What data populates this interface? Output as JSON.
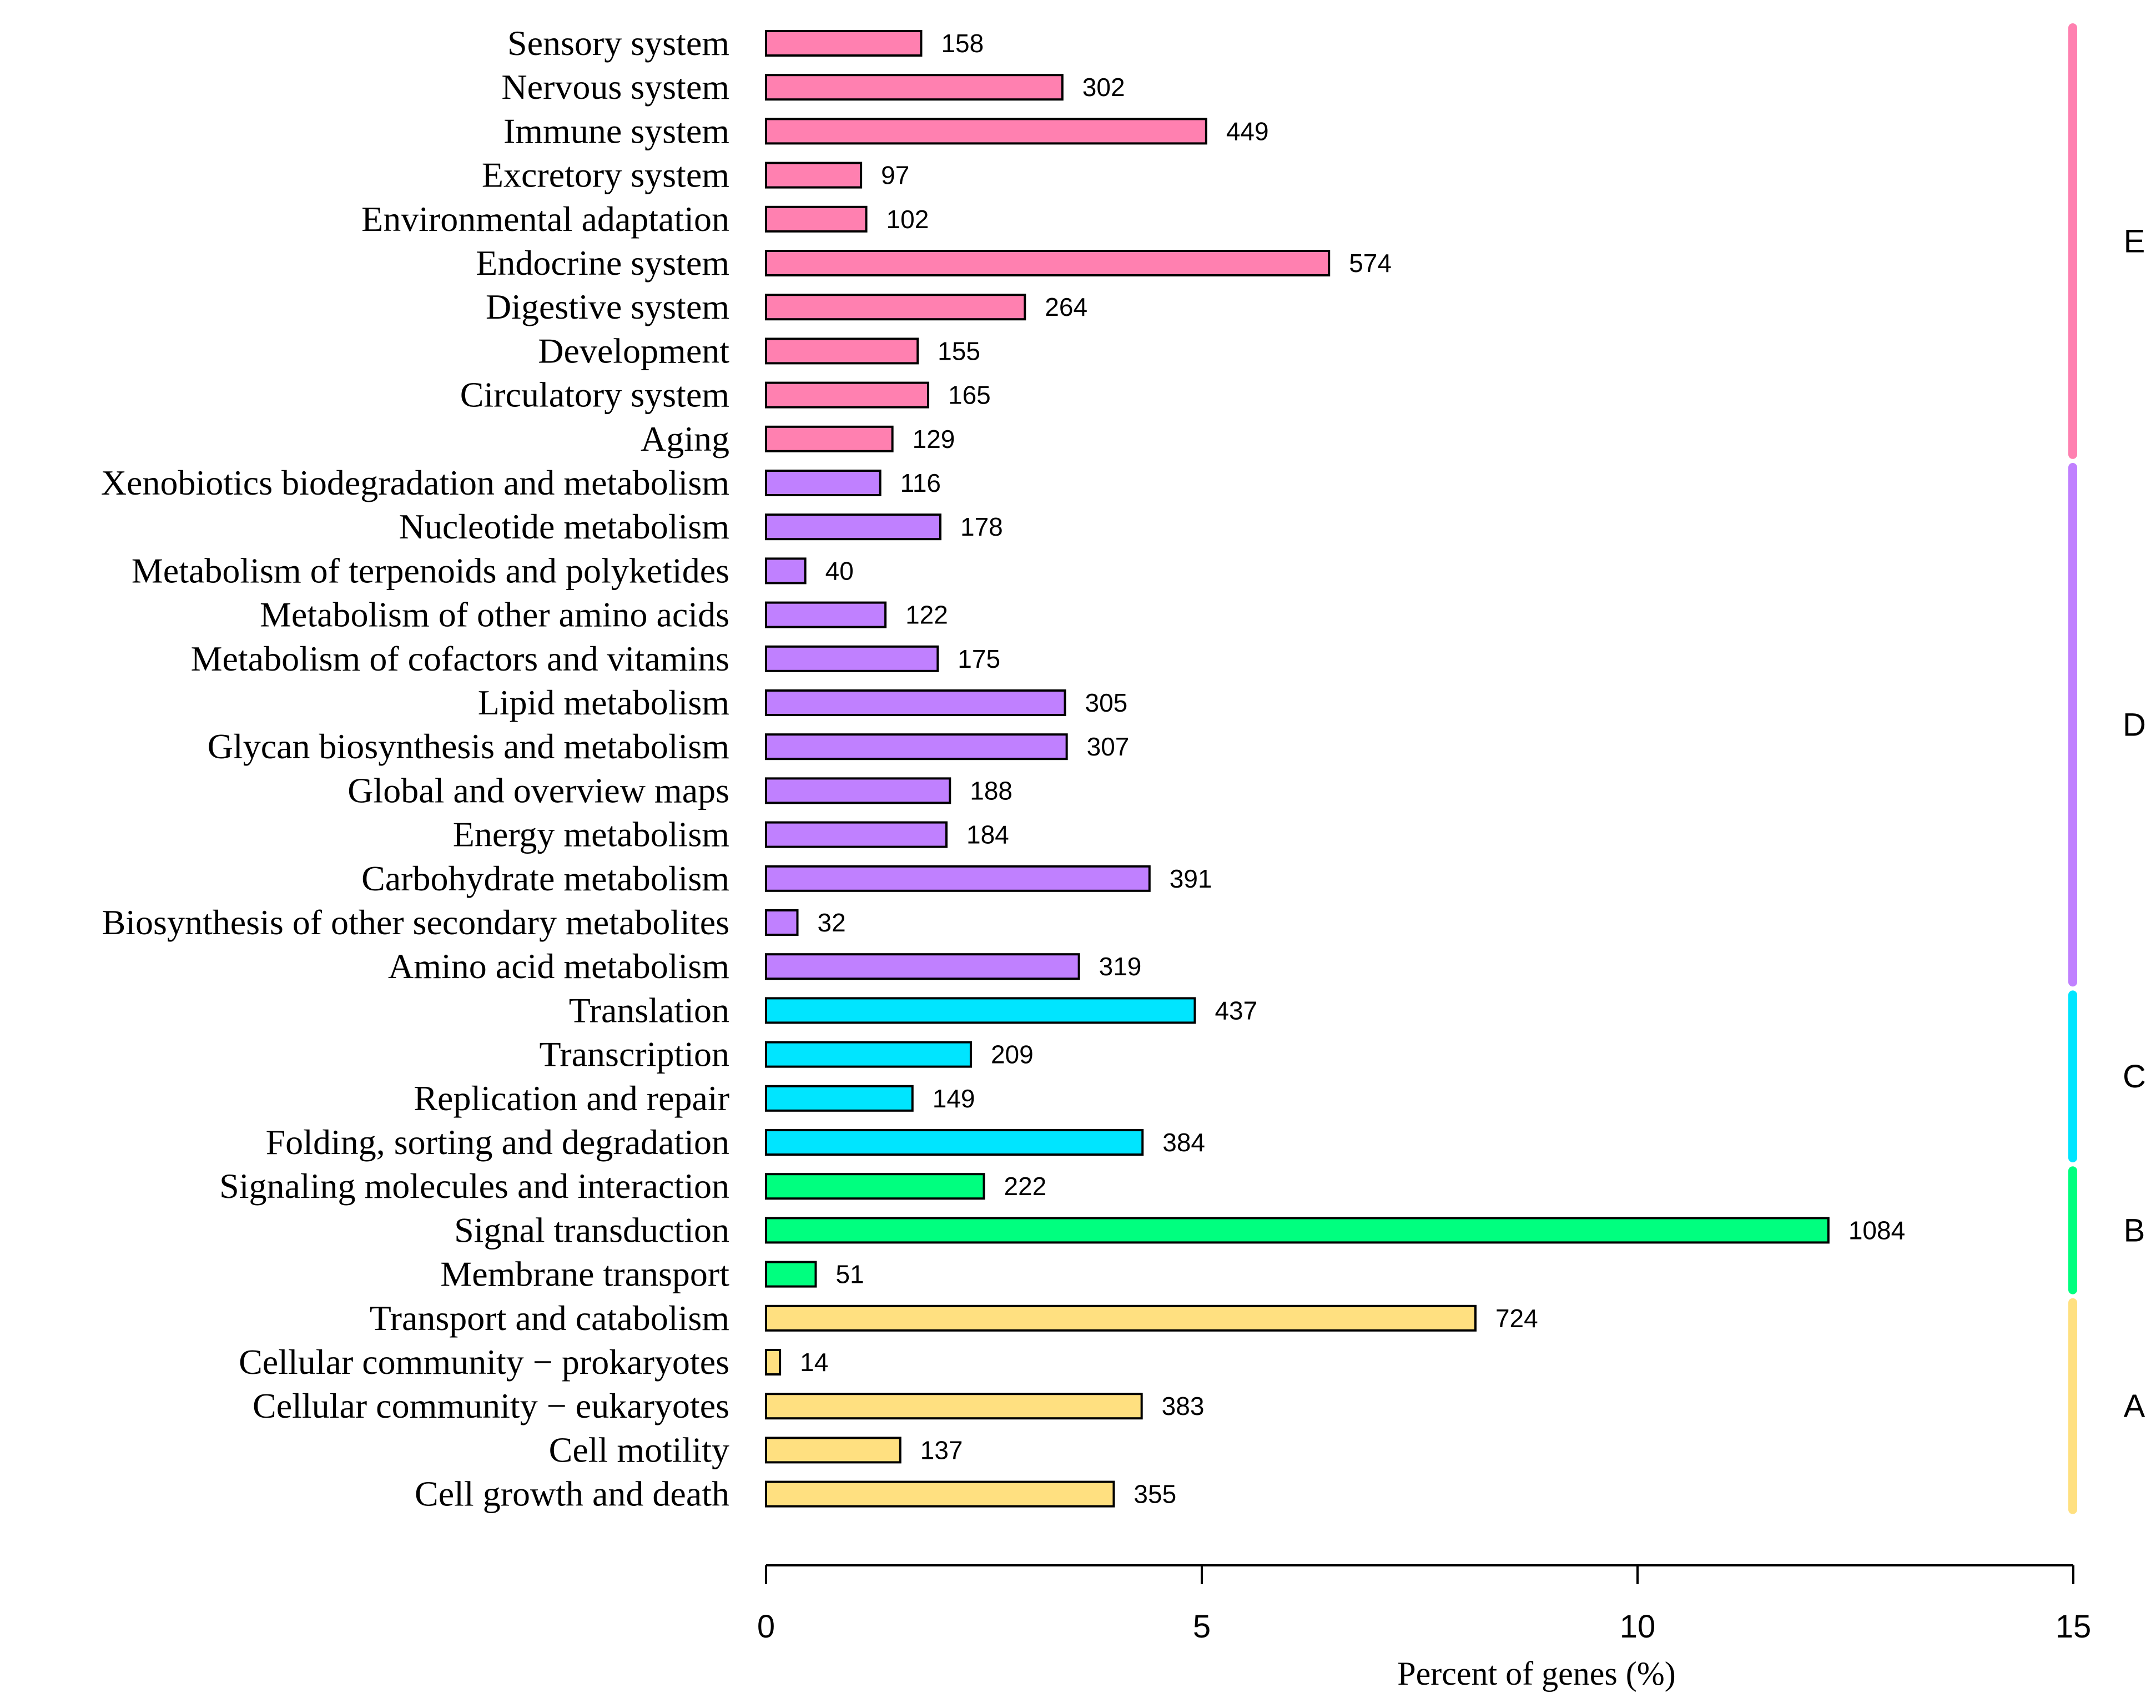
{
  "chart_data": {
    "type": "bar",
    "orientation": "horizontal",
    "title": "",
    "xlabel": "Percent of genes (%)",
    "ylabel": "",
    "xlim": [
      0,
      15
    ],
    "xticks": [
      0,
      5,
      10,
      15
    ],
    "grid": false,
    "colors": {
      "E": "#FF80B0",
      "D": "#C080FF",
      "C": "#00E5FF",
      "B": "#00FF7F",
      "A": "#FFE080"
    },
    "groups": [
      {
        "name": "E",
        "categories": [
          "Sensory system",
          "Nervous system",
          "Immune system",
          "Excretory system",
          "Environmental adaptation",
          "Endocrine system",
          "Digestive system",
          "Development",
          "Circulatory system",
          "Aging"
        ]
      },
      {
        "name": "D",
        "categories": [
          "Xenobiotics biodegradation and metabolism",
          "Nucleotide metabolism",
          "Metabolism of terpenoids and polyketides",
          "Metabolism of other amino acids",
          "Metabolism of cofactors and vitamins",
          "Lipid metabolism",
          "Glycan biosynthesis and metabolism",
          "Global and overview maps",
          "Energy metabolism",
          "Carbohydrate metabolism",
          "Biosynthesis of other secondary metabolites",
          "Amino acid metabolism"
        ]
      },
      {
        "name": "C",
        "categories": [
          "Translation",
          "Transcription",
          "Replication and repair",
          "Folding, sorting and degradation"
        ]
      },
      {
        "name": "B",
        "categories": [
          "Signaling molecules and interaction",
          "Signal transduction",
          "Membrane transport"
        ]
      },
      {
        "name": "A",
        "categories": [
          "Transport and catabolism",
          "Cellular community − prokaryotes",
          "Cellular community − eukaryotes",
          "Cell motility",
          "Cell growth and death"
        ]
      }
    ],
    "bars": [
      {
        "category": "Sensory system",
        "group": "E",
        "percent": 1.78,
        "count": "158"
      },
      {
        "category": "Nervous system",
        "group": "E",
        "percent": 3.4,
        "count": "302"
      },
      {
        "category": "Immune system",
        "group": "E",
        "percent": 5.05,
        "count": "449"
      },
      {
        "category": "Excretory system",
        "group": "E",
        "percent": 1.09,
        "count": "97"
      },
      {
        "category": "Environmental adaptation",
        "group": "E",
        "percent": 1.15,
        "count": "102"
      },
      {
        "category": "Endocrine system",
        "group": "E",
        "percent": 6.46,
        "count": "574"
      },
      {
        "category": "Digestive system",
        "group": "E",
        "percent": 2.97,
        "count": "264"
      },
      {
        "category": "Development",
        "group": "E",
        "percent": 1.74,
        "count": "155"
      },
      {
        "category": "Circulatory system",
        "group": "E",
        "percent": 1.86,
        "count": "165"
      },
      {
        "category": "Aging",
        "group": "E",
        "percent": 1.45,
        "count": "129"
      },
      {
        "category": "Xenobiotics biodegradation and metabolism",
        "group": "D",
        "percent": 1.31,
        "count": "116"
      },
      {
        "category": "Nucleotide metabolism",
        "group": "D",
        "percent": 2.0,
        "count": "178"
      },
      {
        "category": "Metabolism of terpenoids and polyketides",
        "group": "D",
        "percent": 0.45,
        "count": "40"
      },
      {
        "category": "Metabolism of other amino acids",
        "group": "D",
        "percent": 1.37,
        "count": "122"
      },
      {
        "category": "Metabolism of cofactors and vitamins",
        "group": "D",
        "percent": 1.97,
        "count": "175"
      },
      {
        "category": "Lipid metabolism",
        "group": "D",
        "percent": 3.43,
        "count": "305"
      },
      {
        "category": "Glycan biosynthesis and metabolism",
        "group": "D",
        "percent": 3.45,
        "count": "307"
      },
      {
        "category": "Global and overview maps",
        "group": "D",
        "percent": 2.11,
        "count": "188"
      },
      {
        "category": "Energy metabolism",
        "group": "D",
        "percent": 2.07,
        "count": "184"
      },
      {
        "category": "Carbohydrate metabolism",
        "group": "D",
        "percent": 4.4,
        "count": "391"
      },
      {
        "category": "Biosynthesis of other secondary metabolites",
        "group": "D",
        "percent": 0.36,
        "count": "32"
      },
      {
        "category": "Amino acid metabolism",
        "group": "D",
        "percent": 3.59,
        "count": "319"
      },
      {
        "category": "Translation",
        "group": "C",
        "percent": 4.92,
        "count": "437"
      },
      {
        "category": "Transcription",
        "group": "C",
        "percent": 2.35,
        "count": "209"
      },
      {
        "category": "Replication and repair",
        "group": "C",
        "percent": 1.68,
        "count": "149"
      },
      {
        "category": "Folding, sorting and degradation",
        "group": "C",
        "percent": 4.32,
        "count": "384"
      },
      {
        "category": "Signaling molecules and interaction",
        "group": "B",
        "percent": 2.5,
        "count": "222"
      },
      {
        "category": "Signal transduction",
        "group": "B",
        "percent": 12.19,
        "count": "1084"
      },
      {
        "category": "Membrane transport",
        "group": "B",
        "percent": 0.57,
        "count": "51"
      },
      {
        "category": "Transport and catabolism",
        "group": "A",
        "percent": 8.14,
        "count": "724"
      },
      {
        "category": "Cellular community − prokaryotes",
        "group": "A",
        "percent": 0.16,
        "count": "14"
      },
      {
        "category": "Cellular community − eukaryotes",
        "group": "A",
        "percent": 4.31,
        "count": "383"
      },
      {
        "category": "Cell motility",
        "group": "A",
        "percent": 1.54,
        "count": "137"
      },
      {
        "category": "Cell growth and death",
        "group": "A",
        "percent": 3.99,
        "count": "355"
      }
    ]
  }
}
